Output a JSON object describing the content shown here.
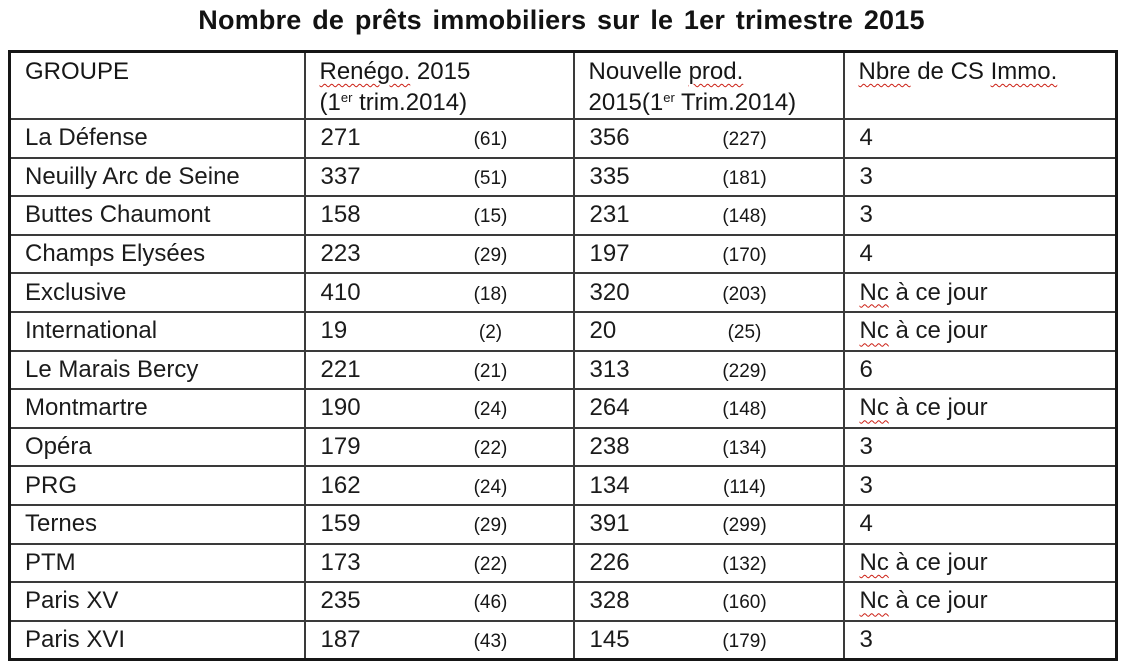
{
  "title": "Nombre de prêts immobiliers sur le 1er trimestre 2015",
  "colors": {
    "spellcheck_squiggle": "#cc1f14",
    "grid_border": "#3a3a3a",
    "text": "#1b1b1b",
    "background": "#ffffff"
  },
  "table": {
    "headers": {
      "groupe": {
        "text": "GROUPE"
      },
      "renego": {
        "word": "Renégo.",
        "rest": " 2015",
        "line2_pre": "(1",
        "sup": "er",
        "line2_post": " trim.2014)"
      },
      "prod": {
        "pre": "Nouvelle ",
        "word": "prod.",
        "line2_pre": "2015(1",
        "sup": "er",
        "line2_post": " Trim.2014)"
      },
      "cs": {
        "word1": "Nbre",
        "mid": " de CS ",
        "word2": "Immo."
      }
    },
    "rows": [
      {
        "groupe": "La Défense",
        "renego": "271",
        "renego_prev": "(61)",
        "prod": "356",
        "prod_prev": "(227)",
        "cs": "4"
      },
      {
        "groupe": "Neuilly Arc de Seine",
        "renego": "337",
        "renego_prev": "(51)",
        "prod": "335",
        "prod_prev": "(181)",
        "cs": "3"
      },
      {
        "groupe": "Buttes Chaumont",
        "renego": "158",
        "renego_prev": "(15)",
        "prod": "231",
        "prod_prev": "(148)",
        "cs": "3"
      },
      {
        "groupe": "Champs Elysées",
        "renego": "223",
        "renego_prev": "(29)",
        "prod": "197",
        "prod_prev": "(170)",
        "cs": "4"
      },
      {
        "groupe": "Exclusive",
        "renego": "410",
        "renego_prev": "(18)",
        "prod": "320",
        "prod_prev": "(203)",
        "cs": "Nc à ce jour",
        "cs_word": "Nc",
        "cs_rest": " à ce jour"
      },
      {
        "groupe": "International",
        "renego": "19",
        "renego_prev": "(2)",
        "prod": "20",
        "prod_prev": "(25)",
        "cs": "Nc à ce jour",
        "cs_word": "Nc",
        "cs_rest": " à ce jour"
      },
      {
        "groupe": "Le Marais Bercy",
        "renego": "221",
        "renego_prev": "(21)",
        "prod": "313",
        "prod_prev": "(229)",
        "cs": "6"
      },
      {
        "groupe": "Montmartre",
        "renego": "190",
        "renego_prev": "(24)",
        "prod": "264",
        "prod_prev": "(148)",
        "cs": "Nc à ce jour",
        "cs_word": "Nc",
        "cs_rest": " à ce jour"
      },
      {
        "groupe": "Opéra",
        "renego": "179",
        "renego_prev": "(22)",
        "prod": "238",
        "prod_prev": "(134)",
        "cs": "3"
      },
      {
        "groupe": "PRG",
        "renego": "162",
        "renego_prev": "(24)",
        "prod": "134",
        "prod_prev": "(114)",
        "cs": "3"
      },
      {
        "groupe": "Ternes",
        "renego": "159",
        "renego_prev": "(29)",
        "prod": "391",
        "prod_prev": "(299)",
        "cs": "4"
      },
      {
        "groupe": "PTM",
        "renego": "173",
        "renego_prev": "(22)",
        "prod": "226",
        "prod_prev": "(132)",
        "cs": "Nc à ce jour",
        "cs_word": "Nc",
        "cs_rest": " à ce jour"
      },
      {
        "groupe": "Paris XV",
        "renego": "235",
        "renego_prev": "(46)",
        "prod": "328",
        "prod_prev": "(160)",
        "cs": "Nc à ce jour",
        "cs_word": "Nc",
        "cs_rest": " à ce jour"
      },
      {
        "groupe": "Paris XVI",
        "renego": "187",
        "renego_prev": "(43)",
        "prod": "145",
        "prod_prev": "(179)",
        "cs": "3"
      }
    ]
  }
}
